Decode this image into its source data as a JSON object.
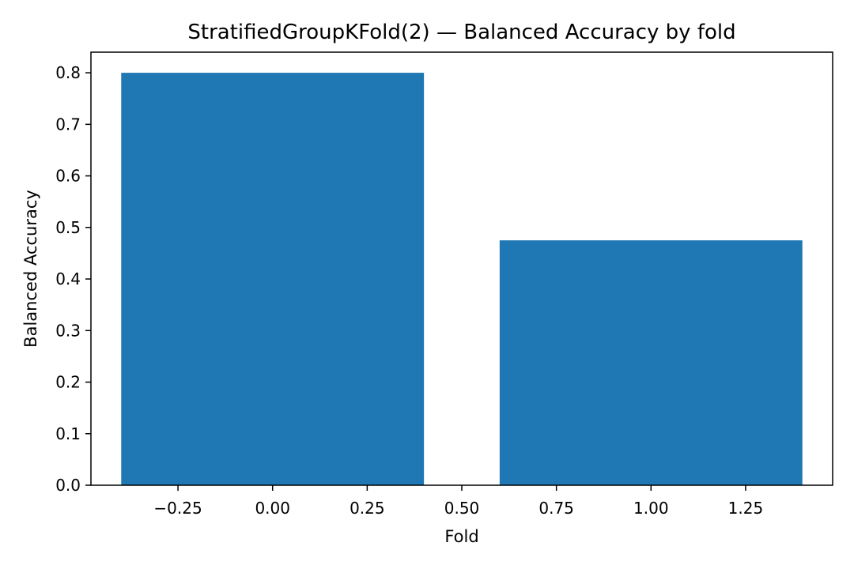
{
  "chart_data": {
    "type": "bar",
    "title": "StratifiedGroupKFold(2) — Balanced Accuracy by fold",
    "xlabel": "Fold",
    "ylabel": "Balanced Accuracy",
    "bars": [
      {
        "x": 0,
        "value": 0.8
      },
      {
        "x": 1,
        "value": 0.475
      }
    ],
    "bar_width": 0.8,
    "xlim": [
      -0.48,
      1.48
    ],
    "ylim": [
      0,
      0.84
    ],
    "xticks": [
      -0.25,
      0.0,
      0.25,
      0.5,
      0.75,
      1.0,
      1.25
    ],
    "xtick_labels": [
      "−0.25",
      "0.00",
      "0.25",
      "0.50",
      "0.75",
      "1.00",
      "1.25"
    ],
    "yticks": [
      0.0,
      0.1,
      0.2,
      0.3,
      0.4,
      0.5,
      0.6,
      0.7,
      0.8
    ],
    "ytick_labels": [
      "0.0",
      "0.1",
      "0.2",
      "0.3",
      "0.4",
      "0.5",
      "0.6",
      "0.7",
      "0.8"
    ],
    "grid": false,
    "colors": {
      "bar": "#1f77b4",
      "axes": "#000000",
      "background": "#ffffff"
    }
  }
}
